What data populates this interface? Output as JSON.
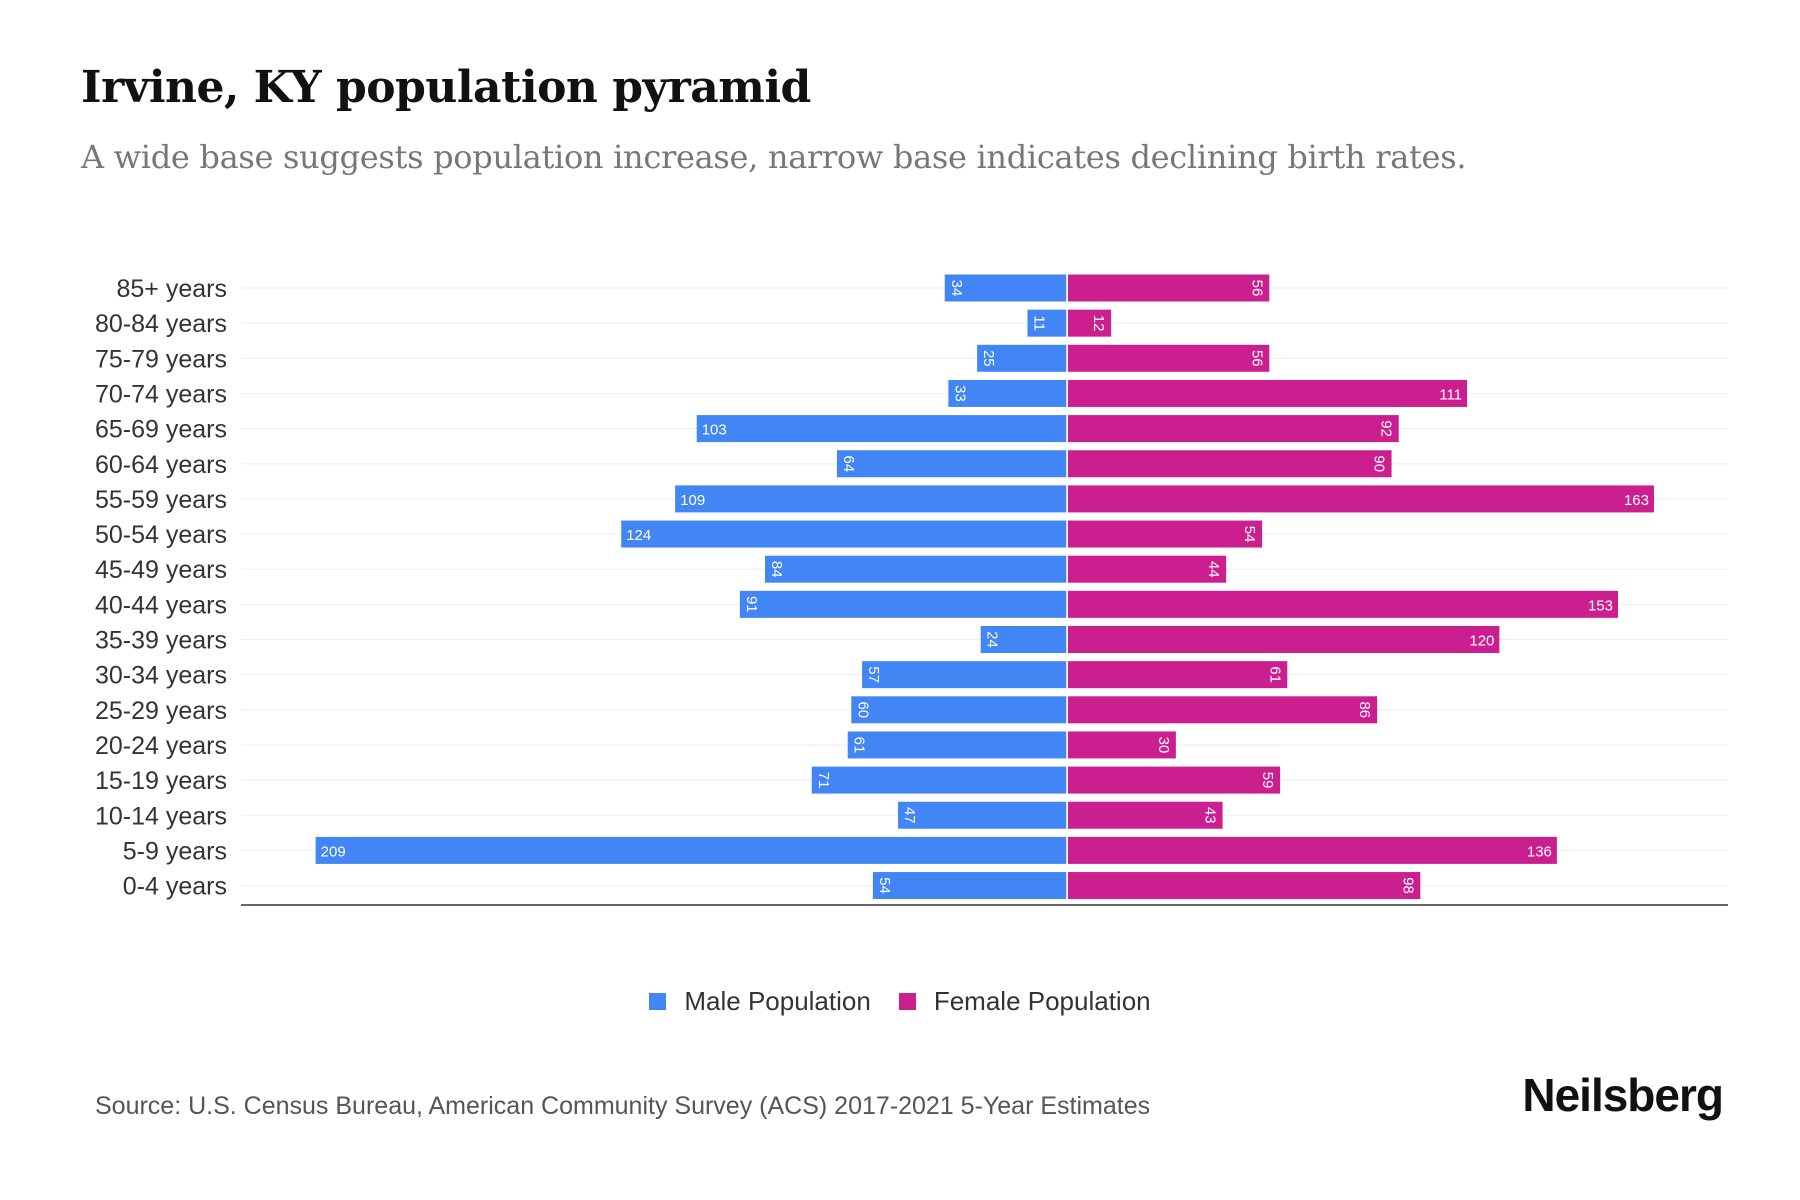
{
  "title": "Irvine, KY population pyramid",
  "subtitle": "A wide base suggests population increase, narrow base indicates declining birth rates.",
  "source": "Source: U.S. Census Bureau, American Community Survey (ACS) 2017-2021 5-Year Estimates",
  "logo": "Neilsberg",
  "chart_data": {
    "type": "bar",
    "orientation": "horizontal-pyramid",
    "categories": [
      "85+ years",
      "80-84 years",
      "75-79 years",
      "70-74 years",
      "65-69 years",
      "60-64 years",
      "55-59 years",
      "50-54 years",
      "45-49 years",
      "40-44 years",
      "35-39 years",
      "30-34 years",
      "25-29 years",
      "20-24 years",
      "15-19 years",
      "10-14 years",
      "5-9 years",
      "0-4 years"
    ],
    "series": [
      {
        "name": "Male Population",
        "color": "#4285F4",
        "values": [
          34,
          11,
          25,
          33,
          103,
          64,
          109,
          124,
          84,
          91,
          24,
          57,
          60,
          61,
          71,
          47,
          209,
          54
        ]
      },
      {
        "name": "Female Population",
        "color": "#CC1F8F",
        "values": [
          56,
          12,
          56,
          111,
          92,
          90,
          163,
          54,
          44,
          153,
          120,
          61,
          86,
          30,
          59,
          43,
          136,
          98
        ]
      }
    ],
    "legend": "bottom-center",
    "grid": true
  }
}
